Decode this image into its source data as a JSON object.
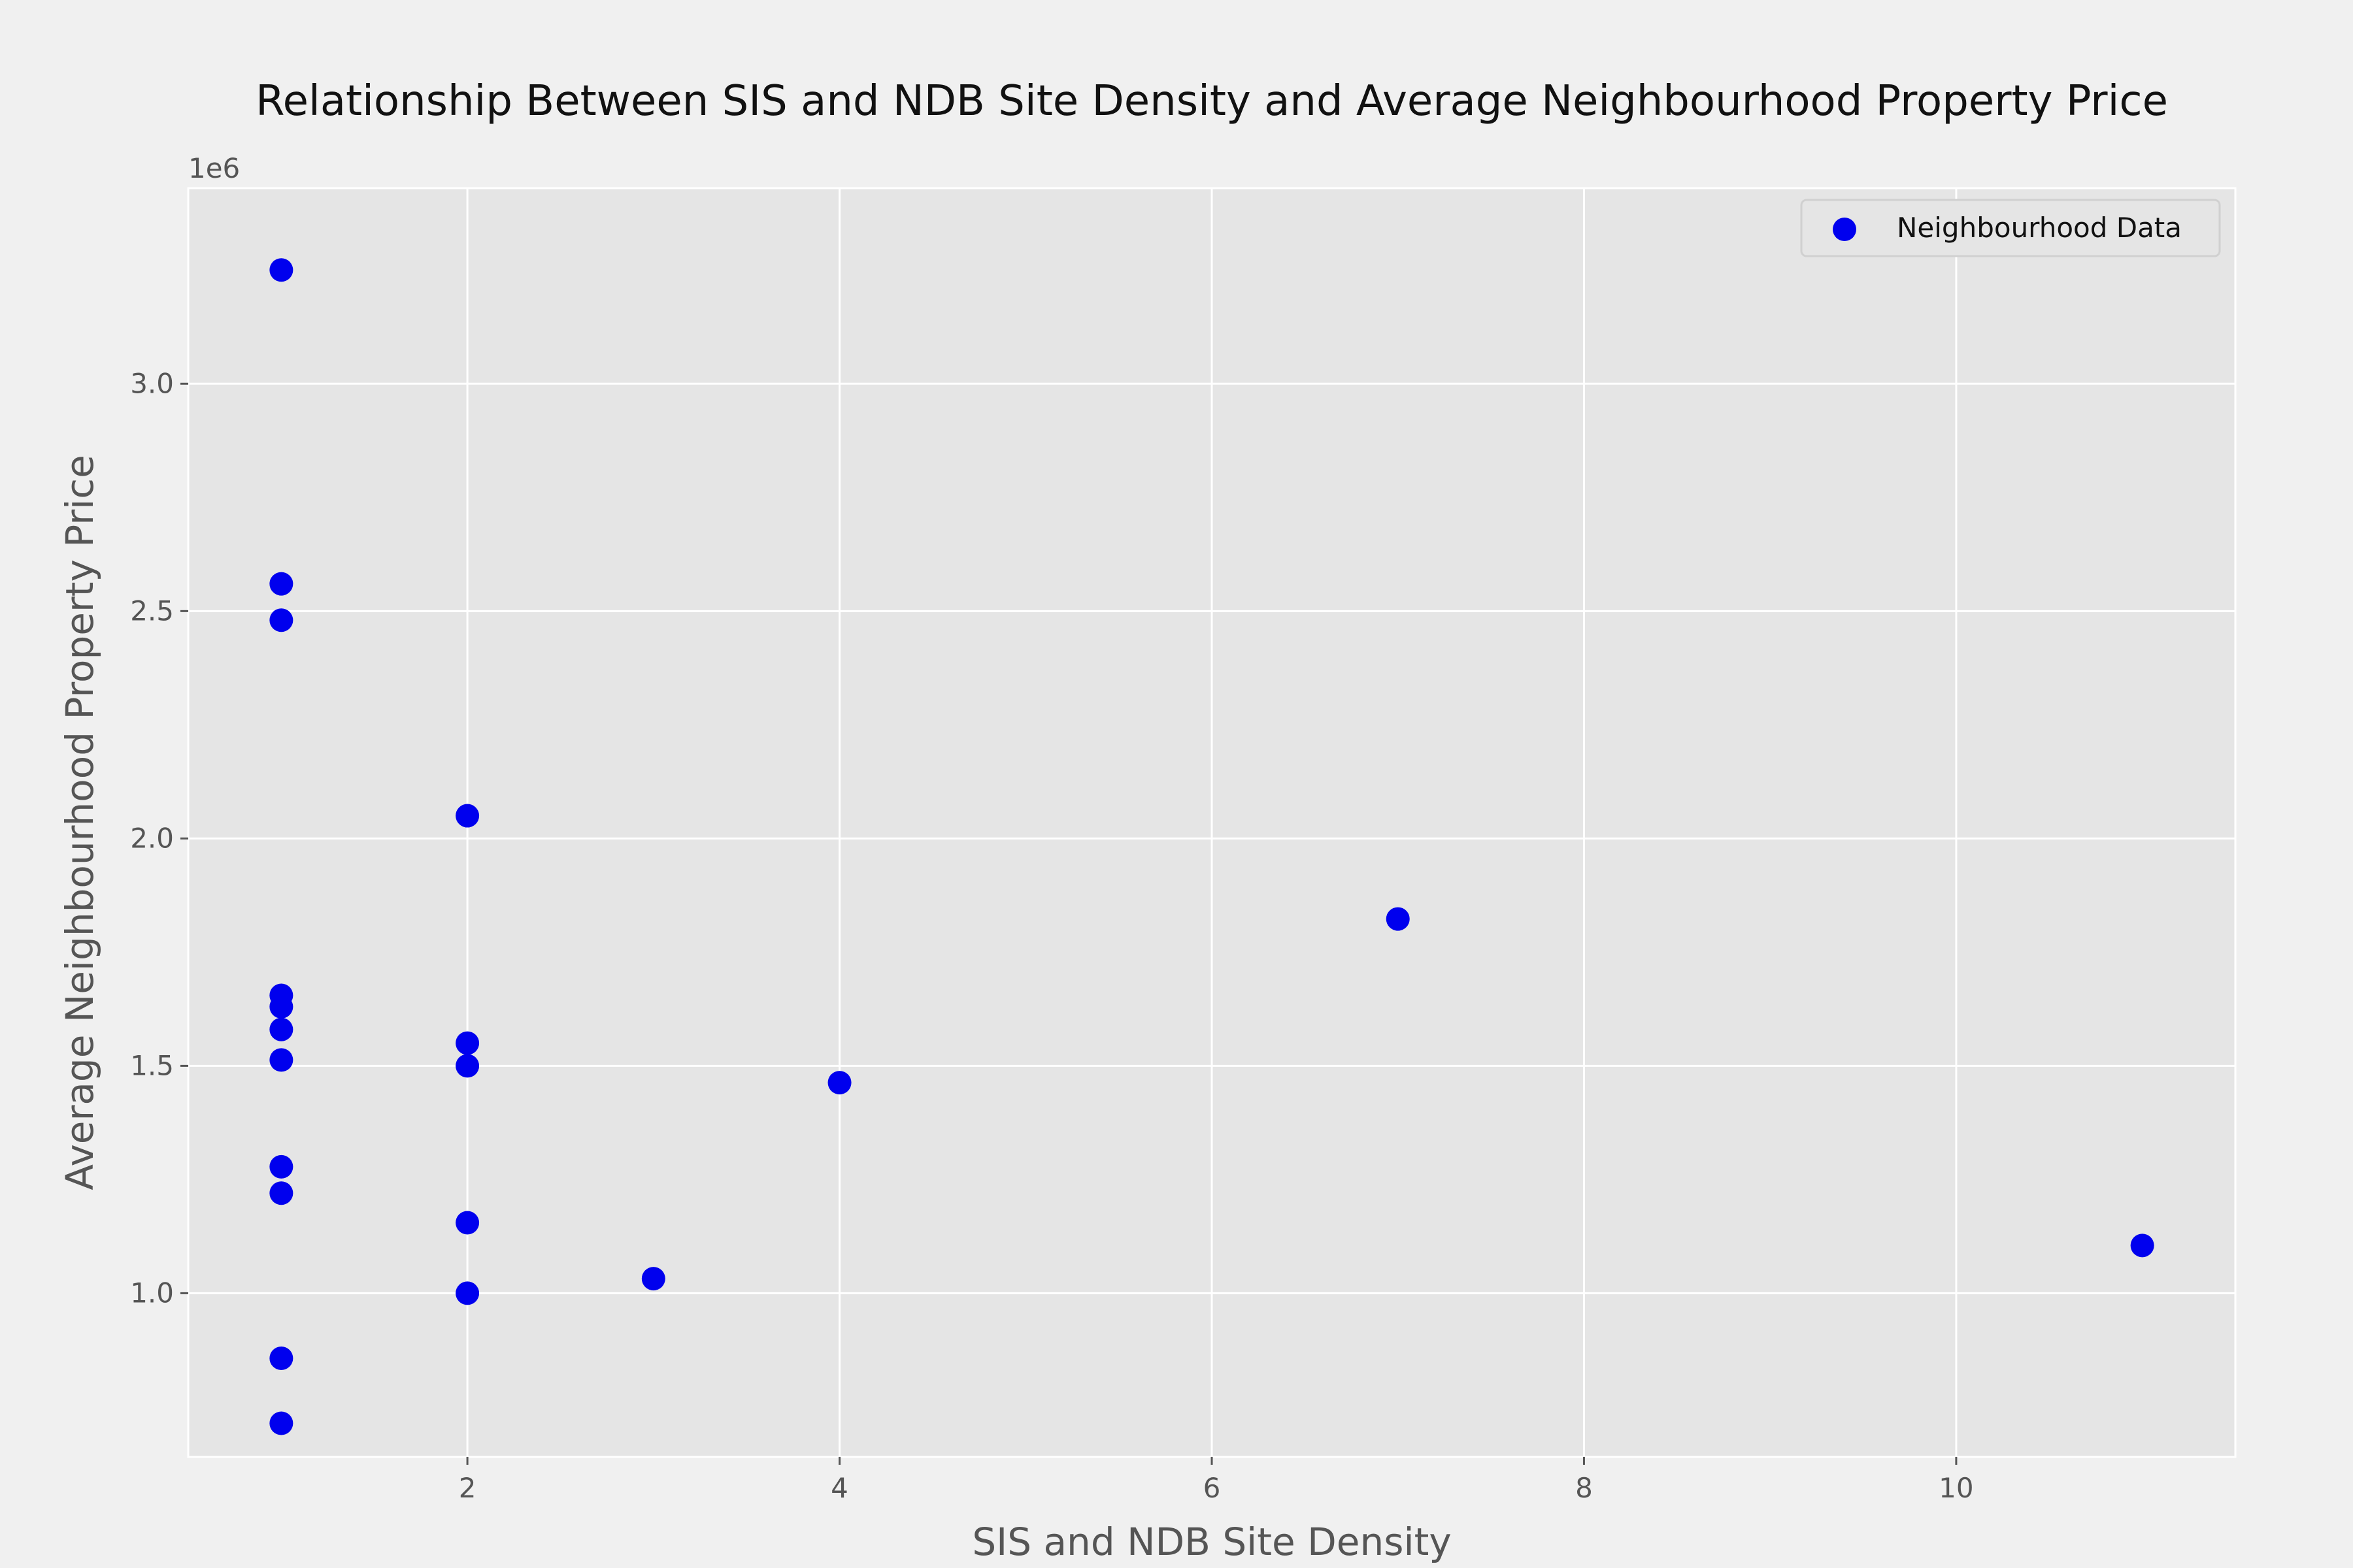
{
  "chart_data": {
    "type": "scatter",
    "title": "Relationship Between SIS and NDB Site Density and Average Neighbourhood Property Price",
    "xlabel": "SIS and NDB Site Density",
    "ylabel": "Average Neighbourhood Property Price",
    "y_offset_text": "1e6",
    "xlim": [
      0.5,
      11.5
    ],
    "ylim": [
      640000,
      3430000
    ],
    "x_ticks": [
      2,
      4,
      6,
      8,
      10
    ],
    "x_tick_labels": [
      "2",
      "4",
      "6",
      "8",
      "10"
    ],
    "y_ticks": [
      1000000,
      1500000,
      2000000,
      2500000,
      3000000
    ],
    "y_tick_labels": [
      "1.0",
      "1.5",
      "2.0",
      "2.5",
      "3.0"
    ],
    "grid": true,
    "legend_position": "top-right",
    "colors": {
      "marker": "#0000ee",
      "plot_bg": "#e5e5e5",
      "figure_bg": "#f0f0f0",
      "grid": "#ffffff",
      "text": "#555555",
      "title": "#111111"
    },
    "series": [
      {
        "name": "Neighbourhood Data",
        "points": [
          {
            "x": 1,
            "y": 3250000
          },
          {
            "x": 1,
            "y": 2560000
          },
          {
            "x": 1,
            "y": 2480000
          },
          {
            "x": 1,
            "y": 1655000
          },
          {
            "x": 1,
            "y": 1630000
          },
          {
            "x": 1,
            "y": 1580000
          },
          {
            "x": 1,
            "y": 1513000
          },
          {
            "x": 1,
            "y": 1278000
          },
          {
            "x": 1,
            "y": 1220000
          },
          {
            "x": 1,
            "y": 857000
          },
          {
            "x": 1,
            "y": 714000
          },
          {
            "x": 2,
            "y": 2050000
          },
          {
            "x": 2,
            "y": 1550000
          },
          {
            "x": 2,
            "y": 1500000
          },
          {
            "x": 2,
            "y": 1155000
          },
          {
            "x": 2,
            "y": 1000000
          },
          {
            "x": 3,
            "y": 1032000
          },
          {
            "x": 4,
            "y": 1463000
          },
          {
            "x": 7,
            "y": 1823000
          },
          {
            "x": 11,
            "y": 1105000
          }
        ]
      }
    ]
  }
}
